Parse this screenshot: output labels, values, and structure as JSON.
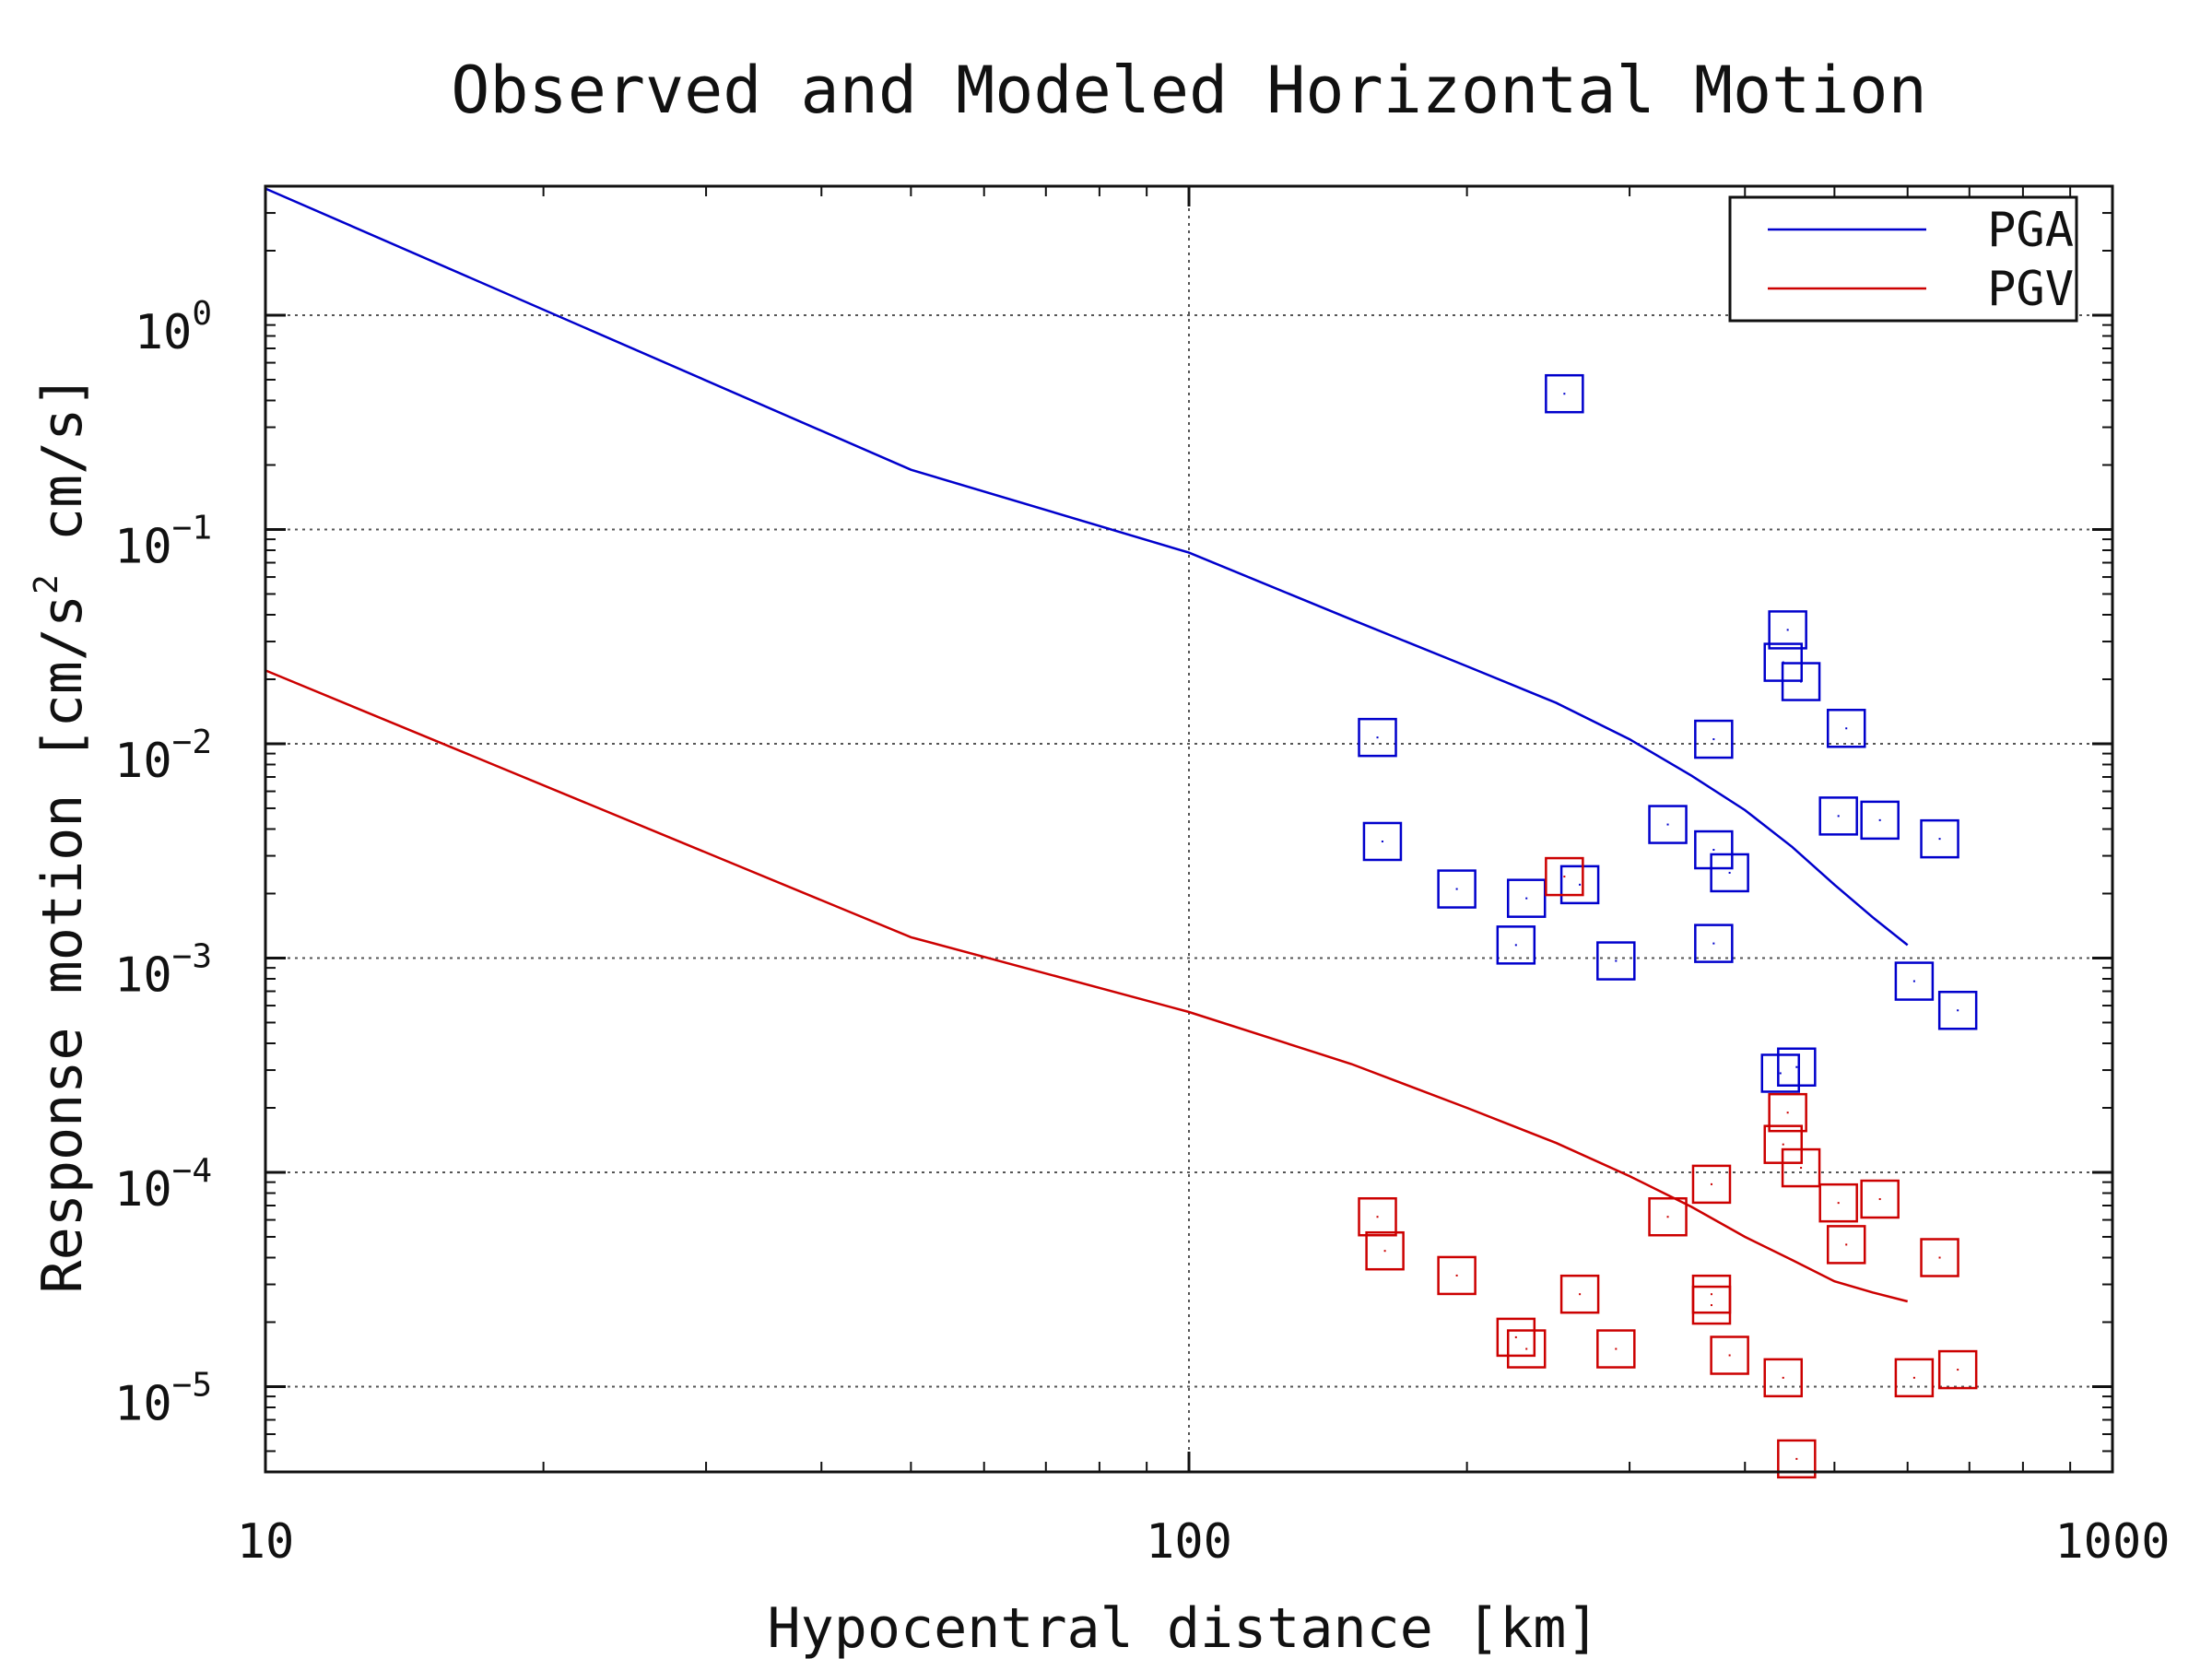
{
  "chart_data": {
    "type": "scatter",
    "title": "Observed and Modeled Horizontal Motion",
    "xlabel": "Hypocentral distance [km]",
    "ylabel": {
      "prefix": "Response motion  [cm/s",
      "sup": "2",
      "suffix": "  cm/s]"
    },
    "x_scale": "log",
    "y_scale": "log",
    "xlim": [
      10,
      1000
    ],
    "ylim": [
      4e-06,
      4
    ],
    "grid": true,
    "legend_position": "top-right",
    "x_ticks": [
      {
        "value": 10,
        "label": "10"
      },
      {
        "value": 100,
        "label": "100"
      },
      {
        "value": 1000,
        "label": "1000"
      }
    ],
    "y_ticks": [
      {
        "value": 1,
        "base": "10",
        "exp": "0"
      },
      {
        "value": 0.1,
        "base": "10",
        "exp": "−1"
      },
      {
        "value": 0.01,
        "base": "10",
        "exp": "−2"
      },
      {
        "value": 0.001,
        "base": "10",
        "exp": "−3"
      },
      {
        "value": 0.0001,
        "base": "10",
        "exp": "−4"
      },
      {
        "value": 1e-05,
        "base": "10",
        "exp": "−5"
      }
    ],
    "series": [
      {
        "name": "PGA",
        "kind": "line",
        "color": "#0000cc",
        "points": [
          [
            10,
            3.9
          ],
          [
            50,
            0.19
          ],
          [
            100,
            0.078
          ],
          [
            150,
            0.038
          ],
          [
            200,
            0.023
          ],
          [
            250,
            0.0155
          ],
          [
            300,
            0.0105
          ],
          [
            350,
            0.0071
          ],
          [
            400,
            0.0049
          ],
          [
            450,
            0.0033
          ],
          [
            500,
            0.0022
          ],
          [
            550,
            0.00155
          ],
          [
            600,
            0.00115
          ]
        ]
      },
      {
        "name": "PGV",
        "kind": "line",
        "color": "#cc0000",
        "points": [
          [
            10,
            0.022
          ],
          [
            50,
            0.00125
          ],
          [
            100,
            0.00056
          ],
          [
            150,
            0.00032
          ],
          [
            200,
            0.0002
          ],
          [
            250,
            0.000137
          ],
          [
            300,
            9.6e-05
          ],
          [
            350,
            6.9e-05
          ],
          [
            400,
            5e-05
          ],
          [
            450,
            3.9e-05
          ],
          [
            500,
            3.1e-05
          ],
          [
            550,
            2.75e-05
          ],
          [
            600,
            2.5e-05
          ]
        ]
      },
      {
        "kind": "markers",
        "marker": "square",
        "color": "#0000cc",
        "points": [
          [
            255,
            0.43
          ],
          [
            160,
            0.0107
          ],
          [
            162,
            0.0035
          ],
          [
            195,
            0.0021
          ],
          [
            226,
            0.00115
          ],
          [
            232,
            0.0019
          ],
          [
            265,
            0.0022
          ],
          [
            290,
            0.00097
          ],
          [
            330,
            0.0042
          ],
          [
            370,
            0.0105
          ],
          [
            370,
            0.0032
          ],
          [
            385,
            0.0025
          ],
          [
            370,
            0.00117
          ],
          [
            445,
            0.034
          ],
          [
            440,
            0.024
          ],
          [
            460,
            0.0195
          ],
          [
            515,
            0.0118
          ],
          [
            505,
            0.0046
          ],
          [
            560,
            0.0044
          ],
          [
            650,
            0.0036
          ],
          [
            610,
            0.00078
          ],
          [
            680,
            0.00057
          ],
          [
            437,
            0.00029
          ],
          [
            455,
            0.00031
          ]
        ]
      },
      {
        "kind": "markers",
        "marker": "square",
        "color": "#cc0000",
        "points": [
          [
            255,
            0.0024
          ],
          [
            160,
            6.2e-05
          ],
          [
            163,
            4.3e-05
          ],
          [
            195,
            3.3e-05
          ],
          [
            226,
            1.7e-05
          ],
          [
            232,
            1.5e-05
          ],
          [
            265,
            2.7e-05
          ],
          [
            290,
            1.5e-05
          ],
          [
            330,
            6.2e-05
          ],
          [
            368,
            8.8e-05
          ],
          [
            368,
            2.7e-05
          ],
          [
            368,
            2.4e-05
          ],
          [
            385,
            1.4e-05
          ],
          [
            445,
            0.00019
          ],
          [
            440,
            0.000135
          ],
          [
            460,
            0.000105
          ],
          [
            505,
            7.2e-05
          ],
          [
            560,
            7.5e-05
          ],
          [
            515,
            4.6e-05
          ],
          [
            650,
            4e-05
          ],
          [
            610,
            1.1e-05
          ],
          [
            680,
            1.2e-05
          ],
          [
            440,
            1.1e-05
          ],
          [
            455,
            4.6e-06
          ]
        ]
      }
    ]
  }
}
